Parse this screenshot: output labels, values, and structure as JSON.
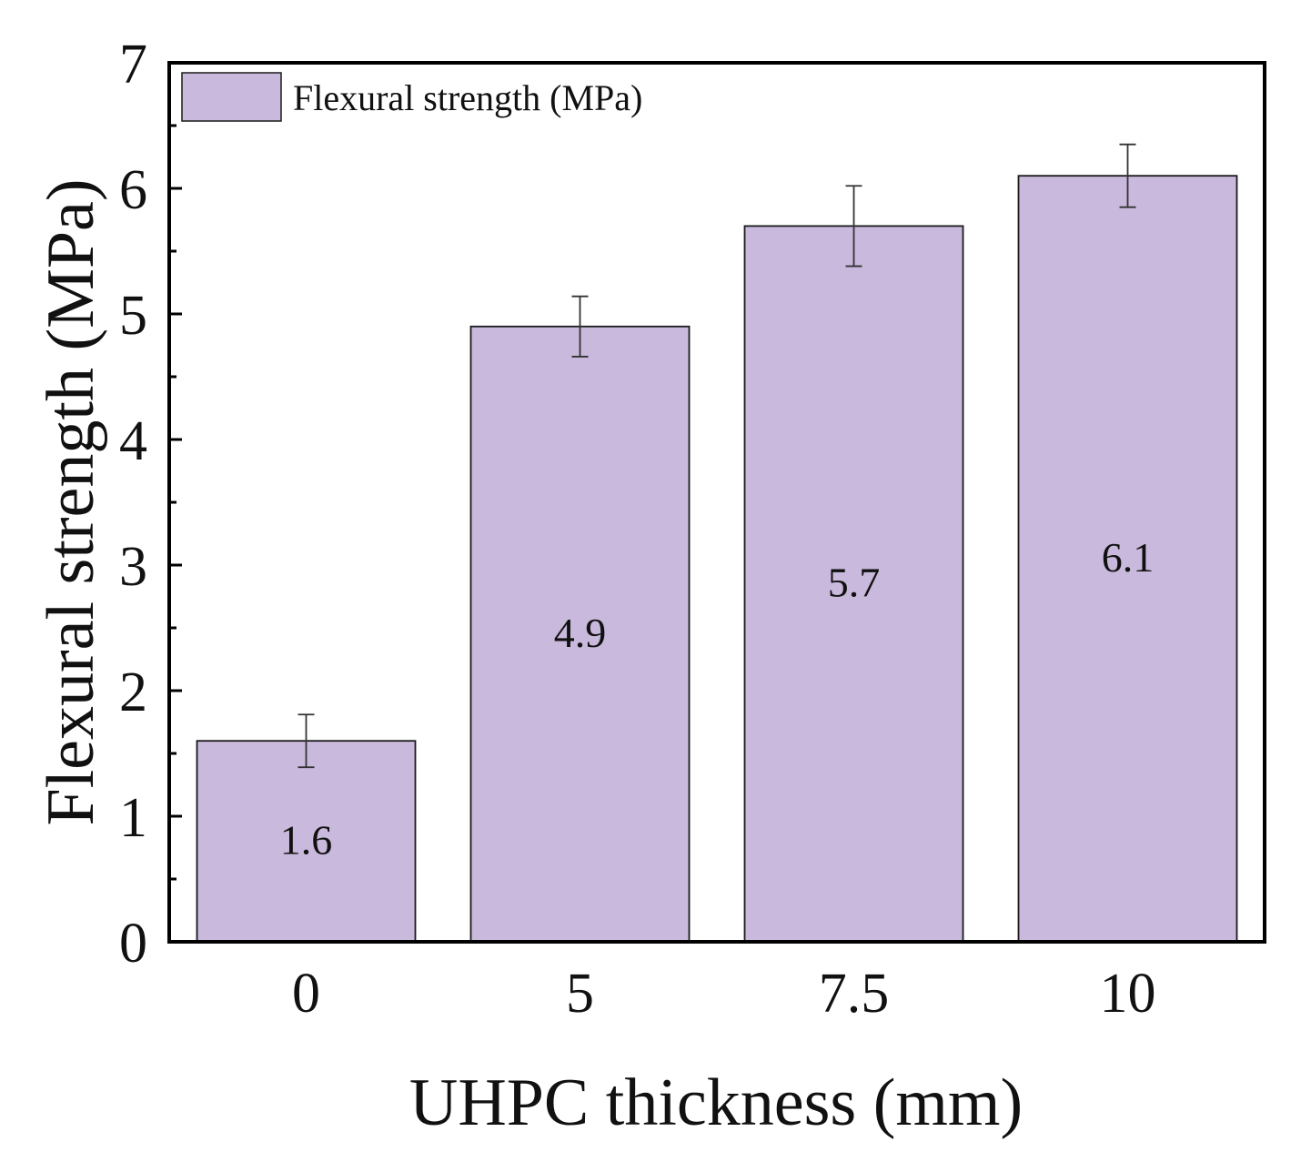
{
  "chart_data": {
    "type": "bar",
    "title": "",
    "xlabel": "UHPC thickness (mm)",
    "ylabel": "Flexural strength (MPa)",
    "categories": [
      "0",
      "5",
      "7.5",
      "10"
    ],
    "series": [
      {
        "name": "Flexural strength (MPa)",
        "values": [
          1.6,
          4.9,
          5.7,
          6.1
        ],
        "error": [
          0.21,
          0.24,
          0.32,
          0.25
        ],
        "data_labels": [
          "1.6",
          "4.9",
          "5.7",
          "6.1"
        ]
      }
    ],
    "ylim": [
      0,
      7
    ],
    "yticks": [
      "0",
      "1",
      "2",
      "3",
      "4",
      "5",
      "6",
      "7"
    ],
    "legend_position": "top-left",
    "grid": false,
    "colors": {
      "bar_fill": "#c9b9dc",
      "bar_stroke": "#1a1a1a",
      "axis": "#000000"
    }
  }
}
